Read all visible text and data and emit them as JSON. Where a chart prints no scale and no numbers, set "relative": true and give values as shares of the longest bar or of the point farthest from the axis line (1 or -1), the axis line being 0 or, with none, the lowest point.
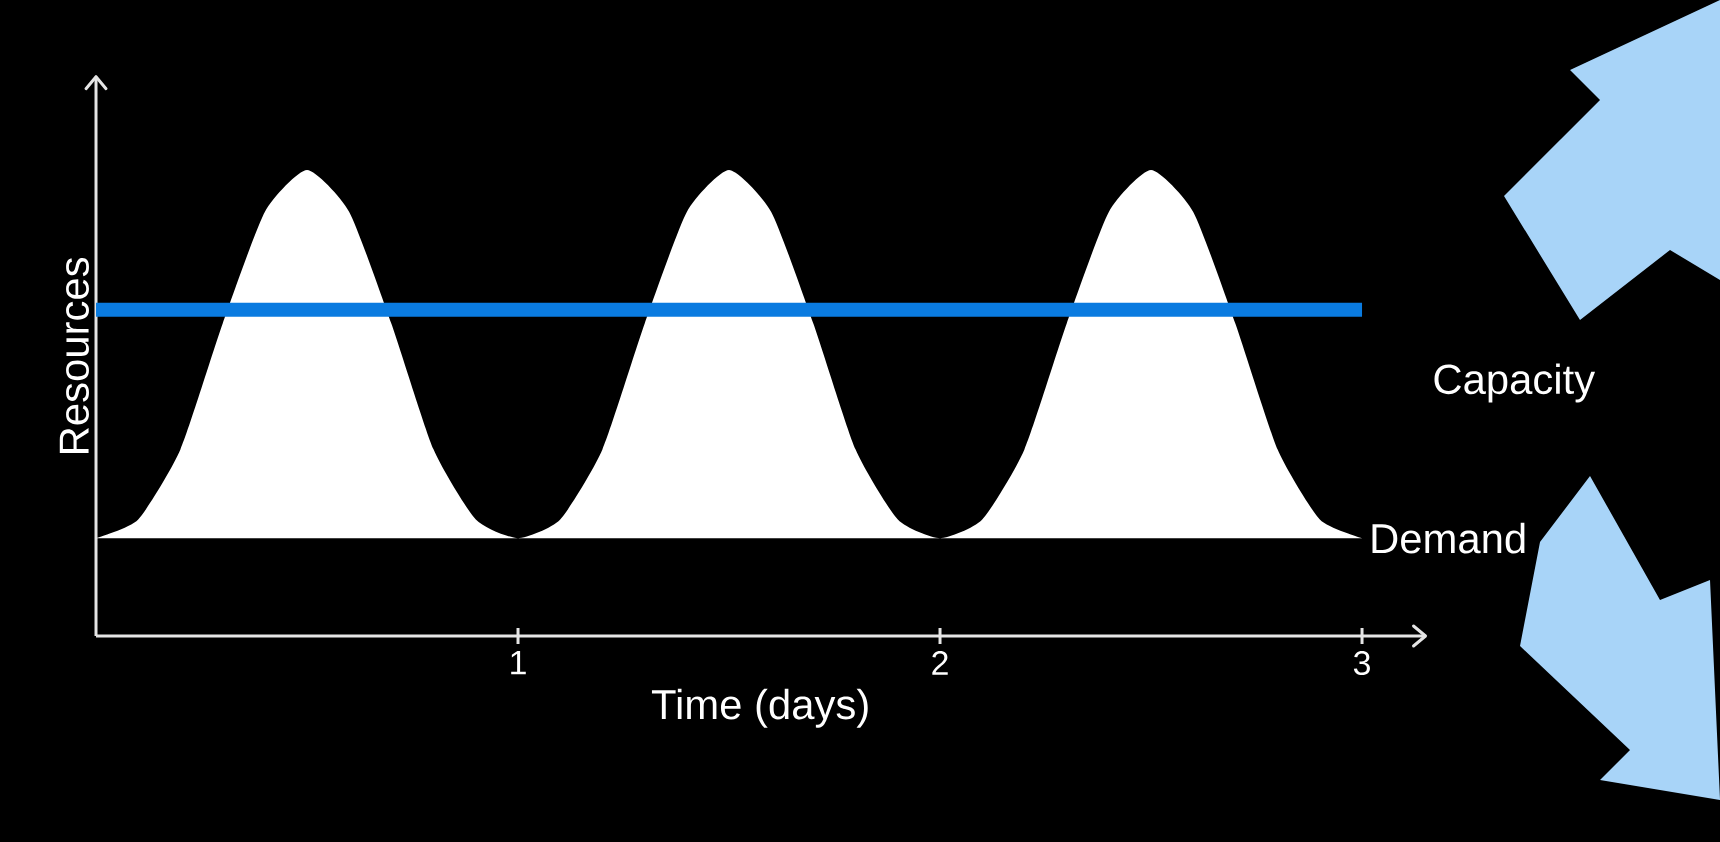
{
  "chart_data": {
    "type": "area",
    "xlabel": "Time (days)",
    "ylabel": "Resources",
    "relative": true,
    "legend": false,
    "grid": false,
    "xlim": [
      0,
      3.15
    ],
    "xticks": [
      1,
      2,
      3
    ],
    "series": [
      {
        "name": "Demand",
        "color": "#ffffff",
        "x": [
          0,
          0.1,
          0.2,
          0.3,
          0.4,
          0.5,
          0.6,
          0.7,
          0.8,
          0.9,
          1,
          1.1,
          1.2,
          1.3,
          1.4,
          1.5,
          1.6,
          1.7,
          1.8,
          1.9,
          2,
          2.1,
          2.2,
          2.3,
          2.4,
          2.5,
          2.6,
          2.7,
          2.8,
          2.9,
          3
        ],
        "values": [
          0.21,
          0.25,
          0.4,
          0.67,
          0.91,
          1,
          0.91,
          0.67,
          0.4,
          0.25,
          0.21,
          0.25,
          0.4,
          0.67,
          0.91,
          1,
          0.91,
          0.67,
          0.4,
          0.25,
          0.21,
          0.25,
          0.4,
          0.67,
          0.91,
          1,
          0.91,
          0.67,
          0.4,
          0.25,
          0.21
        ]
      },
      {
        "name": "Capacity",
        "type": "line",
        "color": "#0a7be0",
        "x": [
          0,
          3
        ],
        "values": [
          0.7,
          0.7
        ]
      }
    ]
  }
}
